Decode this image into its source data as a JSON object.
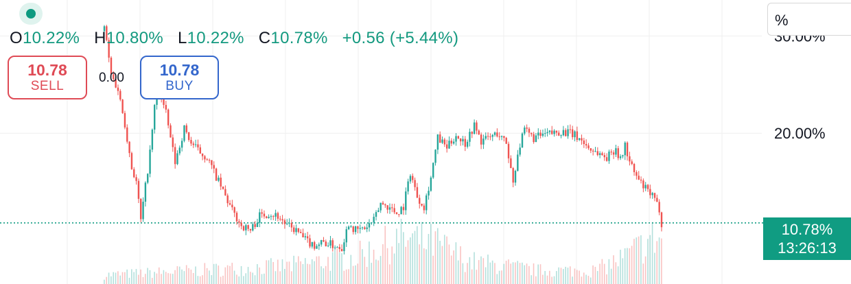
{
  "header": {
    "ohlc": {
      "open_label": "O",
      "open_value": "10.22%",
      "high_label": "H",
      "high_value": "10.80%",
      "low_label": "L",
      "low_value": "10.22%",
      "close_label": "C",
      "close_value": "10.78%",
      "change": "+0.56 (+5.44%)"
    }
  },
  "trade": {
    "sell_price": "10.78",
    "sell_label": "SELL",
    "spread": "0.00",
    "buy_price": "10.78",
    "buy_label": "BUY"
  },
  "axis": {
    "unit": "%",
    "ticks": [
      {
        "label": "30.00%",
        "value": 30
      },
      {
        "label": "20.00%",
        "value": 20
      }
    ]
  },
  "last_price": {
    "value": "10.78%",
    "countdown": "13:26:13"
  },
  "colors": {
    "up": "#26a69a",
    "down": "#ef5350",
    "accent": "#109c82",
    "sell": "#df4a55",
    "buy": "#3366cc"
  },
  "chart_data": {
    "type": "candlestick",
    "y_unit": "%",
    "ylim": [
      4.5,
      33.7
    ],
    "grid": true,
    "last_value": 10.78,
    "close_path": [
      [
        0,
        31.0
      ],
      [
        3,
        26.0
      ],
      [
        6,
        24.5
      ],
      [
        9,
        21.0
      ],
      [
        12,
        16.5
      ],
      [
        14,
        15.0
      ],
      [
        16,
        11.0
      ],
      [
        20,
        18.0
      ],
      [
        23,
        25.0
      ],
      [
        27,
        22.0
      ],
      [
        31,
        17.0
      ],
      [
        35,
        20.5
      ],
      [
        38,
        19.0
      ],
      [
        42,
        18.0
      ],
      [
        45,
        17.5
      ],
      [
        48,
        16.0
      ],
      [
        52,
        14.0
      ],
      [
        56,
        12.0
      ],
      [
        60,
        10.5
      ],
      [
        64,
        10.0
      ],
      [
        68,
        11.5
      ],
      [
        72,
        11.8
      ],
      [
        76,
        11.5
      ],
      [
        80,
        10.5
      ],
      [
        84,
        10.0
      ],
      [
        88,
        9.0
      ],
      [
        92,
        8.5
      ],
      [
        96,
        8.8
      ],
      [
        100,
        8.5
      ],
      [
        104,
        8.3
      ],
      [
        107,
        10.8
      ],
      [
        110,
        10.0
      ],
      [
        114,
        10.2
      ],
      [
        118,
        11.0
      ],
      [
        121,
        12.8
      ],
      [
        124,
        12.5
      ],
      [
        128,
        11.8
      ],
      [
        131,
        12.5
      ],
      [
        134,
        16.0
      ],
      [
        137,
        13.5
      ],
      [
        140,
        12.5
      ],
      [
        143,
        15.5
      ],
      [
        146,
        19.5
      ],
      [
        150,
        18.5
      ],
      [
        154,
        19.8
      ],
      [
        158,
        19.0
      ],
      [
        162,
        20.8
      ],
      [
        165,
        19.2
      ],
      [
        168,
        19.5
      ],
      [
        172,
        20.0
      ],
      [
        176,
        19.0
      ],
      [
        179,
        15.0
      ],
      [
        181,
        18.0
      ],
      [
        184,
        20.3
      ],
      [
        188,
        19.5
      ],
      [
        192,
        19.8
      ],
      [
        196,
        20.0
      ],
      [
        200,
        20.2
      ],
      [
        204,
        20.0
      ],
      [
        208,
        19.5
      ],
      [
        212,
        18.5
      ],
      [
        216,
        18.0
      ],
      [
        220,
        17.5
      ],
      [
        224,
        18.5
      ],
      [
        226,
        17.2
      ],
      [
        228,
        18.8
      ],
      [
        230,
        17.0
      ],
      [
        233,
        15.5
      ],
      [
        236,
        14.5
      ],
      [
        240,
        13.5
      ],
      [
        243,
        12.2
      ],
      [
        244,
        10.78
      ]
    ],
    "volume_peaks": [
      [
        0,
        0.2
      ],
      [
        40,
        0.3
      ],
      [
        80,
        0.4
      ],
      [
        110,
        0.6
      ],
      [
        130,
        1.0
      ],
      [
        145,
        0.9
      ],
      [
        160,
        0.5
      ],
      [
        190,
        0.3
      ],
      [
        215,
        0.3
      ],
      [
        228,
        0.6
      ],
      [
        240,
        1.0
      ]
    ]
  }
}
